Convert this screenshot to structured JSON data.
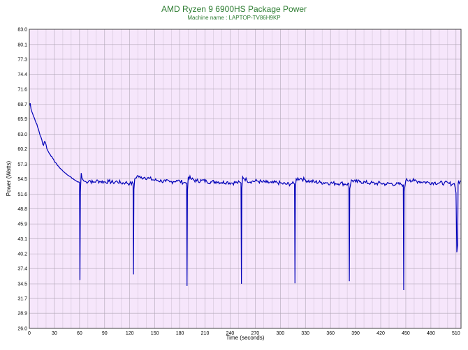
{
  "colors": {
    "title": "#2e7d32",
    "plot_background": "#f6e6fb",
    "grid": "#b0a6b6",
    "line": "#0000b8"
  },
  "chart_data": {
    "type": "line",
    "title": "AMD Ryzen 9 6900HS Package Power",
    "subtitle": "Machine name : LAPTOP-TV86H9KP",
    "xlabel": "Time (seconds)",
    "ylabel": "Power (Watts)",
    "xlim": [
      0,
      516
    ],
    "ylim": [
      26.0,
      83.0
    ],
    "grid": true,
    "x_ticks": [
      0,
      30,
      60,
      90,
      120,
      150,
      180,
      210,
      240,
      270,
      300,
      330,
      360,
      390,
      420,
      450,
      480,
      510
    ],
    "y_ticks": [
      26.0,
      28.9,
      31.7,
      34.5,
      37.4,
      40.2,
      43.1,
      45.9,
      48.8,
      51.6,
      54.5,
      57.3,
      60.2,
      63.0,
      65.9,
      68.7,
      71.6,
      74.4,
      77.3,
      80.1,
      83.0
    ],
    "series": [
      {
        "values": [
          [
            0,
            68.4
          ],
          [
            1,
            68.9
          ],
          [
            2,
            67.8
          ],
          [
            3,
            67.3
          ],
          [
            4,
            66.9
          ],
          [
            5,
            66.4
          ],
          [
            6,
            66.1
          ],
          [
            7,
            65.6
          ],
          [
            8,
            65.2
          ],
          [
            9,
            64.9
          ],
          [
            10,
            64.3
          ],
          [
            11,
            63.9
          ],
          [
            12,
            63.3
          ],
          [
            13,
            62.7
          ],
          [
            14,
            62.4
          ],
          [
            15,
            61.9
          ],
          [
            16,
            61.1
          ],
          [
            17,
            60.9
          ],
          [
            18,
            61.6
          ],
          [
            19,
            61.5
          ],
          [
            20,
            61.0
          ],
          [
            21,
            60.2
          ],
          [
            22,
            59.9
          ],
          [
            23,
            59.6
          ],
          [
            24,
            59.3
          ],
          [
            25,
            59.1
          ],
          [
            26,
            58.8
          ],
          [
            27,
            58.7
          ],
          [
            28,
            58.4
          ],
          [
            29,
            58.2
          ],
          [
            30,
            57.8
          ],
          [
            31,
            57.6
          ],
          [
            32,
            57.5
          ],
          [
            33,
            57.2
          ],
          [
            34,
            57.0
          ],
          [
            35,
            56.9
          ],
          [
            36,
            56.6
          ],
          [
            37,
            56.5
          ],
          [
            38,
            56.3
          ],
          [
            39,
            56.2
          ],
          [
            40,
            56.0
          ],
          [
            41,
            55.9
          ],
          [
            42,
            55.7
          ],
          [
            43,
            55.6
          ],
          [
            44,
            55.5
          ],
          [
            45,
            55.3
          ],
          [
            46,
            55.2
          ],
          [
            47,
            55.1
          ],
          [
            48,
            55.0
          ],
          [
            49,
            54.9
          ],
          [
            50,
            54.8
          ],
          [
            51,
            54.6
          ],
          [
            52,
            54.6
          ],
          [
            53,
            54.4
          ],
          [
            54,
            54.3
          ],
          [
            55,
            54.2
          ],
          [
            56,
            54.1
          ],
          [
            57,
            54.0
          ],
          [
            58,
            53.9
          ],
          [
            59,
            53.9
          ],
          [
            60,
            53.8
          ],
          [
            60.5,
            35.2
          ],
          [
            61,
            52.0
          ],
          [
            62,
            55.6
          ],
          [
            63,
            54.6
          ],
          [
            65,
            54.1
          ],
          [
            68,
            53.9
          ],
          [
            72,
            54.2
          ],
          [
            76,
            53.8
          ],
          [
            80,
            54.1
          ],
          [
            85,
            54.0
          ],
          [
            90,
            53.9
          ],
          [
            95,
            54.0
          ],
          [
            100,
            53.8
          ],
          [
            105,
            54.0
          ],
          [
            110,
            53.7
          ],
          [
            115,
            53.8
          ],
          [
            120,
            53.6
          ],
          [
            124,
            53.6
          ],
          [
            124.5,
            36.3
          ],
          [
            125,
            52.5
          ],
          [
            126,
            54.5
          ],
          [
            129,
            55.1
          ],
          [
            133,
            54.7
          ],
          [
            138,
            54.8
          ],
          [
            143,
            54.6
          ],
          [
            148,
            54.3
          ],
          [
            153,
            54.2
          ],
          [
            158,
            54.1
          ],
          [
            163,
            54.0
          ],
          [
            168,
            53.9
          ],
          [
            172,
            54.0
          ],
          [
            176,
            54.2
          ],
          [
            180,
            54.0
          ],
          [
            185,
            53.8
          ],
          [
            188,
            53.7
          ],
          [
            188.5,
            34.1
          ],
          [
            189,
            52.3
          ],
          [
            190,
            54.9
          ],
          [
            194,
            54.4
          ],
          [
            200,
            54.1
          ],
          [
            206,
            54.2
          ],
          [
            212,
            54.0
          ],
          [
            218,
            53.9
          ],
          [
            224,
            54.0
          ],
          [
            230,
            53.8
          ],
          [
            236,
            53.9
          ],
          [
            242,
            53.7
          ],
          [
            248,
            53.8
          ],
          [
            253,
            53.7
          ],
          [
            253.5,
            34.5
          ],
          [
            254,
            52.6
          ],
          [
            255,
            54.9
          ],
          [
            260,
            54.2
          ],
          [
            266,
            54.0
          ],
          [
            272,
            54.1
          ],
          [
            278,
            53.9
          ],
          [
            284,
            53.8
          ],
          [
            290,
            53.7
          ],
          [
            296,
            53.8
          ],
          [
            302,
            53.6
          ],
          [
            308,
            53.5
          ],
          [
            314,
            53.6
          ],
          [
            317,
            53.5
          ],
          [
            317.5,
            34.6
          ],
          [
            318,
            52.7
          ],
          [
            319,
            54.5
          ],
          [
            324,
            54.6
          ],
          [
            330,
            54.3
          ],
          [
            336,
            54.0
          ],
          [
            342,
            53.9
          ],
          [
            348,
            53.8
          ],
          [
            354,
            53.8
          ],
          [
            360,
            53.7
          ],
          [
            366,
            53.6
          ],
          [
            372,
            53.7
          ],
          [
            378,
            53.5
          ],
          [
            382,
            53.5
          ],
          [
            382.5,
            35.0
          ],
          [
            383,
            52.6
          ],
          [
            385,
            54.3
          ],
          [
            390,
            53.9
          ],
          [
            396,
            54.0
          ],
          [
            402,
            53.8
          ],
          [
            408,
            53.7
          ],
          [
            414,
            53.6
          ],
          [
            420,
            53.7
          ],
          [
            426,
            53.5
          ],
          [
            432,
            53.6
          ],
          [
            438,
            53.4
          ],
          [
            444,
            53.5
          ],
          [
            447,
            53.4
          ],
          [
            447.5,
            33.3
          ],
          [
            448,
            52.1
          ],
          [
            450,
            54.2
          ],
          [
            455,
            54.3
          ],
          [
            460,
            54.1
          ],
          [
            466,
            54.0
          ],
          [
            472,
            53.9
          ],
          [
            478,
            53.8
          ],
          [
            484,
            53.8
          ],
          [
            490,
            53.7
          ],
          [
            496,
            53.7
          ],
          [
            502,
            53.6
          ],
          [
            506,
            53.5
          ],
          [
            508,
            53.6
          ],
          [
            509,
            52.8
          ],
          [
            510,
            51.8
          ],
          [
            511,
            40.5
          ],
          [
            512,
            42.0
          ],
          [
            512.5,
            53.5
          ],
          [
            513,
            54.0
          ],
          [
            514,
            53.6
          ],
          [
            515,
            54.1
          ],
          [
            516,
            54.0
          ]
        ]
      }
    ]
  }
}
